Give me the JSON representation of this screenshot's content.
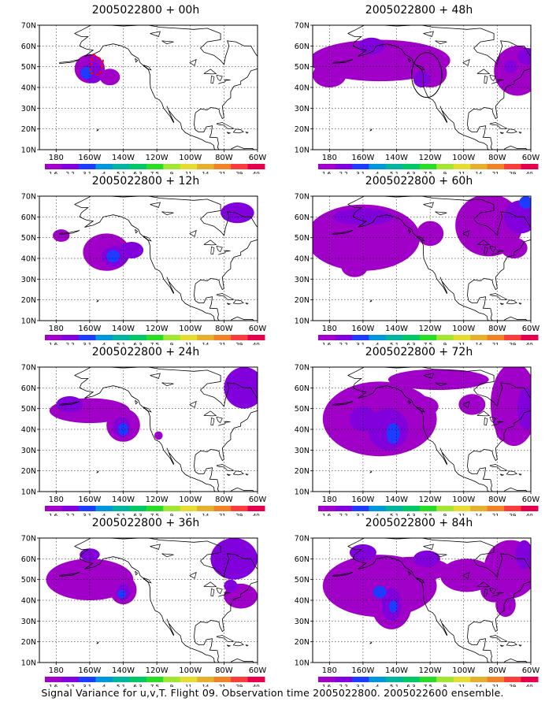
{
  "panels": [
    {
      "title": "2005022800 + 00h"
    },
    {
      "title": "2005022800 + 48h"
    },
    {
      "title": "2005022800 + 12h"
    },
    {
      "title": "2005022800 + 60h"
    },
    {
      "title": "2005022800 + 24h"
    },
    {
      "title": "2005022800 + 72h"
    },
    {
      "title": "2005022800 + 36h"
    },
    {
      "title": "2005022800 + 84h"
    }
  ],
  "lat_labels": [
    "70N",
    "60N",
    "50N",
    "40N",
    "30N",
    "20N",
    "10N"
  ],
  "lon_labels": [
    "180",
    "160W",
    "140W",
    "120W",
    "100W",
    "80W",
    "60W"
  ],
  "colorbar": {
    "labels": [
      "1.6",
      "2.2",
      "3.1",
      "4",
      "5.1",
      "6.3",
      "7.5",
      "9",
      "11",
      "14",
      "21",
      "29",
      "40"
    ],
    "colors": [
      "#a000c8",
      "#8200dc",
      "#1e3cff",
      "#0096dc",
      "#00b4a0",
      "#00c864",
      "#28dc28",
      "#a0e632",
      "#e6dc32",
      "#e6af2d",
      "#f08228",
      "#fa3c3c",
      "#e6004b"
    ]
  },
  "caption": "Signal Variance for u,v,T. Flight 09. Observation time 2005022800. 2005022600 ensemble."
}
